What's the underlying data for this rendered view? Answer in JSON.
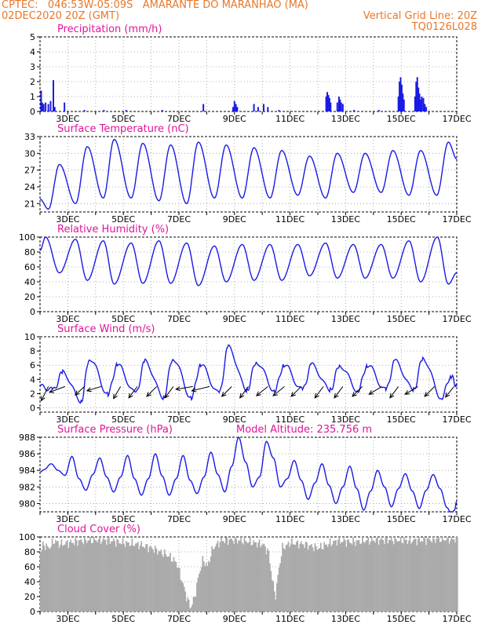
{
  "header": {
    "line1_left": "CPTEC:   046:53W-05:09S   AMARANTE DO MARANHAO (MA)",
    "line2_left": "02DEC2020 20Z (GMT)",
    "line2_right": "Vertical Grid Line: 20Z",
    "line3_right": "TQ0126L028"
  },
  "colors": {
    "header": "#e8772a",
    "title": "#e0149a",
    "series": "#1a1ae6",
    "cloud": "#aaaaaa",
    "grid": "#9a9a9a"
  },
  "x_days": [
    "3DEC",
    "5DEC",
    "7DEC",
    "9DEC",
    "11DEC",
    "13DEC",
    "15DEC",
    "17DEC"
  ],
  "chart_data": [
    {
      "id": "precip",
      "type": "bar",
      "title": "Precipitation (mm/h)",
      "ylim": [
        0,
        5
      ],
      "yticks": [
        "0",
        "1",
        "2",
        "3",
        "4",
        "5"
      ],
      "x_range_days": [
        2.0,
        17.0
      ],
      "events": [
        {
          "day": 2.04,
          "value": 1.4
        },
        {
          "day": 2.08,
          "value": 0.6
        },
        {
          "day": 2.13,
          "value": 0.5
        },
        {
          "day": 2.2,
          "value": 0.6
        },
        {
          "day": 2.3,
          "value": 0.5
        },
        {
          "day": 2.38,
          "value": 0.7
        },
        {
          "day": 2.48,
          "value": 2.1
        },
        {
          "day": 2.53,
          "value": 0.3
        },
        {
          "day": 2.88,
          "value": 0.6
        },
        {
          "day": 3.6,
          "value": 0.1
        },
        {
          "day": 4.3,
          "value": 0.1
        },
        {
          "day": 5.1,
          "value": 0.1
        },
        {
          "day": 6.4,
          "value": 0.1
        },
        {
          "day": 7.88,
          "value": 0.5
        },
        {
          "day": 8.95,
          "value": 0.3
        },
        {
          "day": 9.0,
          "value": 0.7
        },
        {
          "day": 9.05,
          "value": 0.5
        },
        {
          "day": 9.1,
          "value": 0.3
        },
        {
          "day": 9.7,
          "value": 0.5
        },
        {
          "day": 9.85,
          "value": 0.3
        },
        {
          "day": 10.05,
          "value": 0.5
        },
        {
          "day": 10.2,
          "value": 0.3
        },
        {
          "day": 10.6,
          "value": 0.1
        },
        {
          "day": 12.3,
          "value": 1.0
        },
        {
          "day": 12.34,
          "value": 1.3
        },
        {
          "day": 12.38,
          "value": 1.1
        },
        {
          "day": 12.42,
          "value": 0.9
        },
        {
          "day": 12.46,
          "value": 0.6
        },
        {
          "day": 12.7,
          "value": 0.6
        },
        {
          "day": 12.76,
          "value": 1.0
        },
        {
          "day": 12.8,
          "value": 0.8
        },
        {
          "day": 12.84,
          "value": 0.6
        },
        {
          "day": 12.9,
          "value": 0.5
        },
        {
          "day": 13.3,
          "value": 0.1
        },
        {
          "day": 14.2,
          "value": 0.1
        },
        {
          "day": 14.9,
          "value": 1.0
        },
        {
          "day": 14.94,
          "value": 2.0
        },
        {
          "day": 14.98,
          "value": 2.3
        },
        {
          "day": 15.02,
          "value": 1.8
        },
        {
          "day": 15.06,
          "value": 1.2
        },
        {
          "day": 15.1,
          "value": 0.8
        },
        {
          "day": 15.5,
          "value": 1.0
        },
        {
          "day": 15.54,
          "value": 2.0
        },
        {
          "day": 15.58,
          "value": 2.3
        },
        {
          "day": 15.62,
          "value": 1.6
        },
        {
          "day": 15.66,
          "value": 1.2
        },
        {
          "day": 15.7,
          "value": 0.8
        },
        {
          "day": 15.74,
          "value": 1.0
        },
        {
          "day": 15.8,
          "value": 0.9
        },
        {
          "day": 15.85,
          "value": 0.5
        },
        {
          "day": 15.9,
          "value": 0.3
        }
      ]
    },
    {
      "id": "temp",
      "type": "line",
      "title": "Surface Temperature (nC)",
      "ylim": [
        19.5,
        33
      ],
      "yticks": [
        "21",
        "24",
        "27",
        "30",
        "33"
      ],
      "ytick_values": [
        21,
        24,
        27,
        30,
        33
      ],
      "x_range_days": [
        2.0,
        17.0
      ],
      "model": "diurnal",
      "max_times": [
        2.7,
        3.7,
        4.67,
        5.7,
        6.7,
        7.7,
        8.7,
        9.7,
        10.7,
        11.7,
        12.7,
        13.7,
        14.7,
        15.7,
        16.7
      ],
      "max_values": [
        28.0,
        31.2,
        32.5,
        31.8,
        31.5,
        32.0,
        31.5,
        31.0,
        30.5,
        29.5,
        30.0,
        30.0,
        30.5,
        30.5,
        32.0
      ],
      "min_times": [
        2.3,
        3.28,
        4.28,
        5.28,
        6.28,
        7.28,
        8.28,
        9.28,
        10.28,
        11.28,
        12.28,
        13.28,
        14.28,
        15.28,
        16.28
      ],
      "min_values": [
        20.0,
        21.0,
        22.0,
        22.0,
        21.5,
        21.0,
        22.0,
        22.0,
        22.0,
        22.5,
        22.0,
        23.0,
        23.0,
        22.5,
        22.5
      ],
      "y_start": 21.8,
      "y_end": 29.0
    },
    {
      "id": "rh",
      "type": "line",
      "title": "Relative Humidity (%)",
      "ylim": [
        0,
        100
      ],
      "yticks": [
        "0",
        "20",
        "40",
        "60",
        "80",
        "100"
      ],
      "ytick_values": [
        0,
        20,
        40,
        60,
        80,
        100
      ],
      "x_range_days": [
        2.0,
        17.0
      ],
      "model": "diurnal",
      "max_times": [
        2.2,
        3.28,
        4.28,
        5.28,
        6.28,
        7.28,
        8.28,
        9.28,
        10.28,
        11.28,
        12.28,
        13.28,
        14.28,
        15.28,
        16.3
      ],
      "max_values": [
        100,
        97,
        95,
        92,
        95,
        92,
        88,
        90,
        90,
        90,
        92,
        90,
        90,
        95,
        100
      ],
      "min_times": [
        2.7,
        3.7,
        4.67,
        5.7,
        6.7,
        7.7,
        8.7,
        9.7,
        10.7,
        11.7,
        12.7,
        13.7,
        14.7,
        15.7,
        16.7
      ],
      "min_values": [
        52,
        42,
        37,
        38,
        38,
        35,
        40,
        42,
        42,
        48,
        45,
        45,
        45,
        40,
        37
      ],
      "y_start": 82,
      "y_end": 52
    },
    {
      "id": "wind",
      "type": "line",
      "title": "Surface Wind (m/s)",
      "ylim": [
        -0.6,
        10
      ],
      "yticks": [
        "0",
        "2",
        "4",
        "6",
        "8",
        "10"
      ],
      "ytick_values": [
        0,
        2,
        4,
        6,
        8,
        10
      ],
      "x_range_days": [
        2.0,
        17.0
      ],
      "model": "diurnal",
      "max_times": [
        2.82,
        3.78,
        4.78,
        5.78,
        6.78,
        7.78,
        8.78,
        9.78,
        10.78,
        11.78,
        12.78,
        13.78,
        14.78,
        15.78,
        16.8
      ],
      "max_values": [
        5.0,
        7.0,
        6.0,
        6.5,
        7.0,
        6.0,
        8.5,
        6.5,
        6.0,
        6.0,
        6.0,
        6.0,
        6.5,
        7.0,
        4.5
      ],
      "min_times": [
        2.48,
        3.48,
        4.45,
        5.45,
        6.45,
        7.45,
        8.45,
        9.45,
        10.45,
        11.45,
        12.45,
        13.45,
        14.45,
        15.45,
        16.45
      ],
      "min_values": [
        2.5,
        1.0,
        2.0,
        2.0,
        1.5,
        1.5,
        2.0,
        2.5,
        2.5,
        2.5,
        2.5,
        2.5,
        2.5,
        2.5,
        1.5
      ],
      "y_start": 3.0,
      "y_end": 3.0,
      "arrows": [
        {
          "day": 2.3,
          "u": -1.0,
          "v": -2.0
        },
        {
          "day": 2.9,
          "u": -2.2,
          "v": -0.8
        },
        {
          "day": 3.6,
          "u": -1.3,
          "v": -1.2
        },
        {
          "day": 4.2,
          "u": -2.0,
          "v": -0.6
        },
        {
          "day": 4.9,
          "u": -1.0,
          "v": -1.7
        },
        {
          "day": 5.5,
          "u": -1.2,
          "v": -1.6
        },
        {
          "day": 6.2,
          "u": -1.4,
          "v": -1.4
        },
        {
          "day": 6.8,
          "u": -1.2,
          "v": -1.6
        },
        {
          "day": 7.5,
          "u": -2.4,
          "v": -0.4
        },
        {
          "day": 8.1,
          "u": -2.5,
          "v": -0.6
        },
        {
          "day": 8.9,
          "u": -1.4,
          "v": -1.4
        },
        {
          "day": 9.5,
          "u": -1.2,
          "v": -1.6
        },
        {
          "day": 10.2,
          "u": -1.6,
          "v": -1.3
        },
        {
          "day": 10.8,
          "u": -1.6,
          "v": -1.3
        },
        {
          "day": 11.4,
          "u": -1.4,
          "v": -1.4
        },
        {
          "day": 12.2,
          "u": -1.2,
          "v": -1.6
        },
        {
          "day": 12.9,
          "u": -1.2,
          "v": -1.6
        },
        {
          "day": 13.6,
          "u": -1.4,
          "v": -1.4
        },
        {
          "day": 14.3,
          "u": -1.8,
          "v": -1.1
        },
        {
          "day": 14.9,
          "u": -1.2,
          "v": -1.6
        },
        {
          "day": 15.6,
          "u": -1.8,
          "v": -1.1
        },
        {
          "day": 16.2,
          "u": -1.4,
          "v": -1.4
        },
        {
          "day": 16.9,
          "u": -1.2,
          "v": -1.5
        }
      ]
    },
    {
      "id": "press",
      "type": "line",
      "title": "Surface Pressure (hPa)",
      "annotation": "Model Altitude: 235.756  m",
      "ylim": [
        979,
        988
      ],
      "yticks": [
        "980",
        "982",
        "984",
        "986",
        "988"
      ],
      "ytick_values": [
        980,
        982,
        984,
        986,
        988
      ],
      "x_range_days": [
        2.0,
        17.0
      ],
      "model": "semidiurnal",
      "points": [
        [
          2.0,
          983.8
        ],
        [
          2.15,
          984.1
        ],
        [
          2.4,
          984.8
        ],
        [
          2.65,
          984.0
        ],
        [
          2.9,
          983.4
        ],
        [
          3.15,
          985.7
        ],
        [
          3.4,
          983.0
        ],
        [
          3.65,
          981.6
        ],
        [
          3.9,
          983.5
        ],
        [
          4.15,
          985.5
        ],
        [
          4.4,
          983.2
        ],
        [
          4.65,
          981.4
        ],
        [
          4.9,
          983.2
        ],
        [
          5.15,
          985.8
        ],
        [
          5.4,
          983.0
        ],
        [
          5.65,
          981.0
        ],
        [
          5.9,
          983.0
        ],
        [
          6.15,
          986.0
        ],
        [
          6.4,
          983.3
        ],
        [
          6.65,
          981.0
        ],
        [
          6.9,
          983.0
        ],
        [
          7.15,
          985.8
        ],
        [
          7.4,
          982.8
        ],
        [
          7.65,
          981.2
        ],
        [
          7.9,
          983.2
        ],
        [
          8.15,
          986.2
        ],
        [
          8.4,
          983.5
        ],
        [
          8.65,
          981.4
        ],
        [
          8.9,
          984.5
        ],
        [
          9.15,
          988.0
        ],
        [
          9.4,
          985.0
        ],
        [
          9.65,
          982.0
        ],
        [
          9.9,
          983.2
        ],
        [
          10.15,
          987.5
        ],
        [
          10.4,
          985.5
        ],
        [
          10.65,
          982.0
        ],
        [
          10.9,
          983.0
        ],
        [
          11.15,
          985.2
        ],
        [
          11.4,
          982.8
        ],
        [
          11.65,
          980.5
        ],
        [
          11.9,
          982.5
        ],
        [
          12.15,
          984.8
        ],
        [
          12.4,
          982.2
        ],
        [
          12.65,
          980.0
        ],
        [
          12.9,
          982.0
        ],
        [
          13.15,
          984.5
        ],
        [
          13.4,
          981.8
        ],
        [
          13.65,
          979.2
        ],
        [
          13.9,
          981.5
        ],
        [
          14.15,
          984.0
        ],
        [
          14.4,
          982.0
        ],
        [
          14.65,
          979.6
        ],
        [
          14.9,
          981.8
        ],
        [
          15.15,
          983.6
        ],
        [
          15.4,
          981.5
        ],
        [
          15.65,
          979.4
        ],
        [
          15.9,
          981.6
        ],
        [
          16.15,
          983.5
        ],
        [
          16.4,
          981.8
        ],
        [
          16.65,
          979.5
        ],
        [
          16.8,
          978.8
        ],
        [
          16.92,
          979.2
        ],
        [
          17.0,
          980.3
        ]
      ]
    },
    {
      "id": "cloud",
      "type": "area",
      "title": "Cloud Cover (%)",
      "ylim": [
        0,
        100
      ],
      "yticks": [
        "0",
        "20",
        "40",
        "60",
        "80",
        "100"
      ],
      "ytick_values": [
        0,
        20,
        40,
        60,
        80,
        100
      ],
      "x_range_days": [
        2.0,
        17.0
      ],
      "model": "bars",
      "points": [
        [
          2.0,
          80
        ],
        [
          2.1,
          90
        ],
        [
          2.3,
          85
        ],
        [
          2.5,
          95
        ],
        [
          2.7,
          90
        ],
        [
          3.0,
          92
        ],
        [
          3.5,
          95
        ],
        [
          4.0,
          96
        ],
        [
          4.5,
          95
        ],
        [
          5.0,
          92
        ],
        [
          5.5,
          90
        ],
        [
          6.0,
          85
        ],
        [
          6.3,
          80
        ],
        [
          6.6,
          75
        ],
        [
          6.9,
          65
        ],
        [
          7.1,
          40
        ],
        [
          7.25,
          20
        ],
        [
          7.4,
          5
        ],
        [
          7.55,
          20
        ],
        [
          7.7,
          50
        ],
        [
          7.85,
          70
        ],
        [
          8.0,
          60
        ],
        [
          8.2,
          85
        ],
        [
          8.5,
          95
        ],
        [
          8.9,
          96
        ],
        [
          9.3,
          95
        ],
        [
          9.7,
          92
        ],
        [
          10.0,
          90
        ],
        [
          10.2,
          80
        ],
        [
          10.35,
          40
        ],
        [
          10.45,
          20
        ],
        [
          10.55,
          50
        ],
        [
          10.7,
          85
        ],
        [
          11.0,
          92
        ],
        [
          11.5,
          90
        ],
        [
          12.0,
          85
        ],
        [
          12.3,
          90
        ],
        [
          12.7,
          95
        ],
        [
          13.2,
          93
        ],
        [
          13.7,
          95
        ],
        [
          14.2,
          96
        ],
        [
          14.8,
          96
        ],
        [
          15.3,
          95
        ],
        [
          15.8,
          96
        ],
        [
          16.3,
          97
        ],
        [
          17.0,
          97
        ]
      ]
    }
  ]
}
